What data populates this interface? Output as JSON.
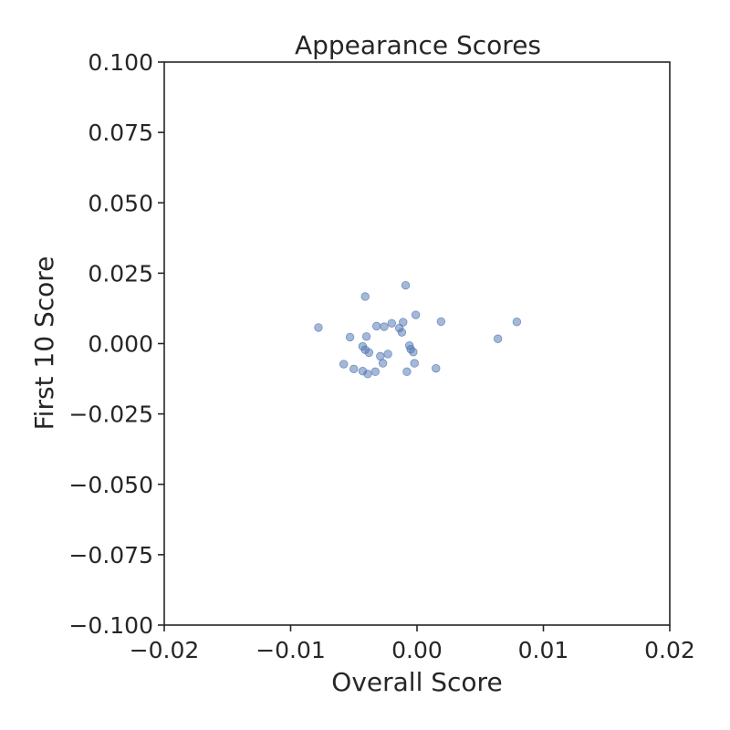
{
  "chart_data": {
    "type": "scatter",
    "title": "Appearance Scores",
    "xlabel": "Overall Score",
    "ylabel": "First 10 Score",
    "xlim": [
      -0.02,
      0.02
    ],
    "ylim": [
      -0.1,
      0.1
    ],
    "x_ticks": [
      -0.02,
      -0.01,
      0.0,
      0.01,
      0.02
    ],
    "x_tick_labels": [
      "−0.02",
      "−0.01",
      "0.00",
      "0.01",
      "0.02"
    ],
    "y_ticks": [
      0.1,
      0.075,
      0.05,
      0.025,
      0.0,
      -0.025,
      -0.05,
      -0.075,
      -0.1
    ],
    "y_tick_labels": [
      "0.100",
      "0.075",
      "0.050",
      "0.025",
      "0.000",
      "−0.025",
      "−0.050",
      "−0.075",
      "−0.100"
    ],
    "grid": false,
    "marker_color": "#4c72b0",
    "marker_opacity": 0.5,
    "points": [
      {
        "x": -0.0078,
        "y": 0.0057
      },
      {
        "x": -0.0053,
        "y": 0.0023
      },
      {
        "x": -0.0041,
        "y": 0.0167
      },
      {
        "x": -0.004,
        "y": 0.0025
      },
      {
        "x": -0.0032,
        "y": 0.0062
      },
      {
        "x": -0.0026,
        "y": 0.006
      },
      {
        "x": -0.002,
        "y": 0.0072
      },
      {
        "x": -0.0014,
        "y": 0.0055
      },
      {
        "x": -0.0012,
        "y": 0.004
      },
      {
        "x": -0.0011,
        "y": 0.0076
      },
      {
        "x": -0.0009,
        "y": 0.0207
      },
      {
        "x": -0.0001,
        "y": 0.0102
      },
      {
        "x": 0.0019,
        "y": 0.0078
      },
      {
        "x": 0.0064,
        "y": 0.0017
      },
      {
        "x": 0.0079,
        "y": 0.0077
      },
      {
        "x": -0.0043,
        "y": -0.001
      },
      {
        "x": -0.0041,
        "y": -0.0022
      },
      {
        "x": -0.0038,
        "y": -0.0032
      },
      {
        "x": -0.0023,
        "y": -0.0037
      },
      {
        "x": -0.0029,
        "y": -0.0045
      },
      {
        "x": -0.0027,
        "y": -0.007
      },
      {
        "x": -0.0006,
        "y": -0.0007
      },
      {
        "x": -0.0005,
        "y": -0.002
      },
      {
        "x": -0.0003,
        "y": -0.003
      },
      {
        "x": -0.0002,
        "y": -0.007
      },
      {
        "x": -0.0058,
        "y": -0.0073
      },
      {
        "x": -0.005,
        "y": -0.009
      },
      {
        "x": -0.0043,
        "y": -0.0098
      },
      {
        "x": -0.0039,
        "y": -0.0108
      },
      {
        "x": -0.0033,
        "y": -0.01
      },
      {
        "x": -0.0008,
        "y": -0.01
      },
      {
        "x": 0.0015,
        "y": -0.0088
      }
    ]
  }
}
